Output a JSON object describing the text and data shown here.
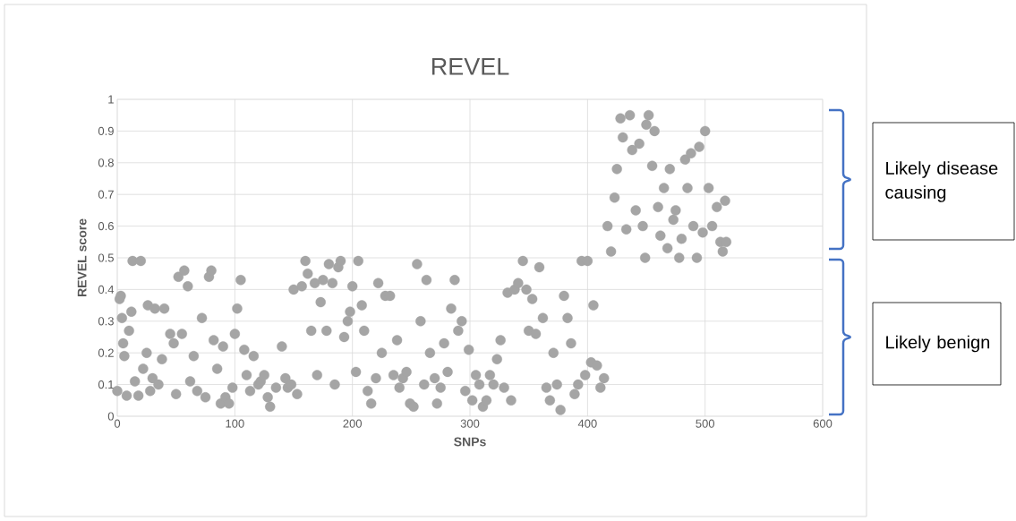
{
  "chart_data": {
    "type": "scatter",
    "title": "REVEL",
    "xlabel": "SNPs",
    "ylabel": "REVEL score",
    "annotations": [
      "Likely disease causing",
      "Likely benign"
    ],
    "xlim": [
      0,
      600
    ],
    "xticks": [
      0,
      100,
      200,
      300,
      400,
      500,
      600
    ],
    "ylim": [
      0,
      1
    ],
    "yticks": [
      0,
      0.1,
      0.2,
      0.3,
      0.4,
      0.5,
      0.6,
      0.7,
      0.8,
      0.9,
      1
    ],
    "grid": true,
    "marker": "circle",
    "series": [
      {
        "color": "#a5a5a5",
        "x": [
          0,
          2,
          3,
          4,
          5,
          6,
          8,
          10,
          12,
          13,
          15,
          18,
          20,
          22,
          25,
          26,
          28,
          30,
          32,
          35,
          38,
          40,
          45,
          48,
          50,
          52,
          55,
          57,
          60,
          62,
          65,
          68,
          72,
          75,
          78,
          80,
          82,
          85,
          88,
          90,
          92,
          95,
          98,
          100,
          102,
          105,
          108,
          110,
          113,
          116,
          120,
          122,
          125,
          128,
          130,
          135,
          140,
          143,
          145,
          148,
          150,
          153,
          157,
          160,
          162,
          165,
          168,
          170,
          173,
          175,
          178,
          180,
          183,
          185,
          188,
          190,
          193,
          196,
          198,
          200,
          203,
          205,
          208,
          210,
          213,
          216,
          220,
          222,
          225,
          228,
          232,
          235,
          238,
          240,
          243,
          246,
          249,
          252,
          255,
          258,
          261,
          263,
          266,
          270,
          272,
          275,
          278,
          281,
          284,
          287,
          290,
          293,
          296,
          299,
          302,
          305,
          308,
          311,
          314,
          317,
          320,
          323,
          326,
          329,
          332,
          335,
          338,
          341,
          345,
          348,
          350,
          353,
          356,
          359,
          362,
          365,
          368,
          371,
          374,
          377,
          380,
          383,
          386,
          389,
          392,
          395,
          398,
          400,
          403,
          405,
          408,
          411,
          414,
          417,
          420,
          423,
          425,
          428,
          430,
          433,
          436,
          438,
          441,
          444,
          447,
          449,
          450,
          452,
          455,
          457,
          460,
          462,
          465,
          468,
          470,
          473,
          475,
          478,
          480,
          483,
          485,
          488,
          490,
          493,
          495,
          498,
          500,
          503,
          506,
          510,
          513,
          515,
          517,
          518
        ],
        "values": [
          0.08,
          0.37,
          0.38,
          0.31,
          0.23,
          0.19,
          0.065,
          0.27,
          0.33,
          0.49,
          0.11,
          0.065,
          0.49,
          0.15,
          0.2,
          0.35,
          0.08,
          0.12,
          0.34,
          0.1,
          0.18,
          0.34,
          0.26,
          0.23,
          0.07,
          0.44,
          0.26,
          0.46,
          0.41,
          0.11,
          0.19,
          0.08,
          0.31,
          0.06,
          0.44,
          0.46,
          0.24,
          0.15,
          0.04,
          0.22,
          0.06,
          0.04,
          0.09,
          0.26,
          0.34,
          0.43,
          0.21,
          0.13,
          0.08,
          0.19,
          0.1,
          0.11,
          0.13,
          0.06,
          0.03,
          0.09,
          0.22,
          0.12,
          0.09,
          0.1,
          0.4,
          0.07,
          0.41,
          0.49,
          0.45,
          0.27,
          0.42,
          0.13,
          0.36,
          0.43,
          0.27,
          0.48,
          0.42,
          0.1,
          0.47,
          0.49,
          0.25,
          0.3,
          0.33,
          0.41,
          0.14,
          0.49,
          0.35,
          0.27,
          0.08,
          0.04,
          0.12,
          0.42,
          0.2,
          0.38,
          0.38,
          0.13,
          0.24,
          0.09,
          0.12,
          0.14,
          0.04,
          0.03,
          0.48,
          0.3,
          0.1,
          0.43,
          0.2,
          0.12,
          0.04,
          0.09,
          0.23,
          0.14,
          0.34,
          0.43,
          0.27,
          0.3,
          0.08,
          0.21,
          0.05,
          0.13,
          0.1,
          0.03,
          0.05,
          0.13,
          0.1,
          0.18,
          0.24,
          0.09,
          0.39,
          0.05,
          0.4,
          0.42,
          0.49,
          0.4,
          0.27,
          0.37,
          0.26,
          0.47,
          0.31,
          0.09,
          0.05,
          0.2,
          0.1,
          0.02,
          0.38,
          0.31,
          0.23,
          0.07,
          0.1,
          0.49,
          0.13,
          0.49,
          0.17,
          0.35,
          0.16,
          0.09,
          0.12,
          0.6,
          0.52,
          0.69,
          0.78,
          0.94,
          0.88,
          0.59,
          0.95,
          0.84,
          0.65,
          0.86,
          0.6,
          0.5,
          0.92,
          0.95,
          0.79,
          0.9,
          0.66,
          0.57,
          0.72,
          0.53,
          0.78,
          0.62,
          0.65,
          0.5,
          0.56,
          0.81,
          0.72,
          0.83,
          0.6,
          0.5,
          0.85,
          0.58,
          0.9,
          0.72,
          0.6,
          0.66,
          0.55,
          0.52,
          0.68,
          0.55
        ]
      }
    ]
  }
}
